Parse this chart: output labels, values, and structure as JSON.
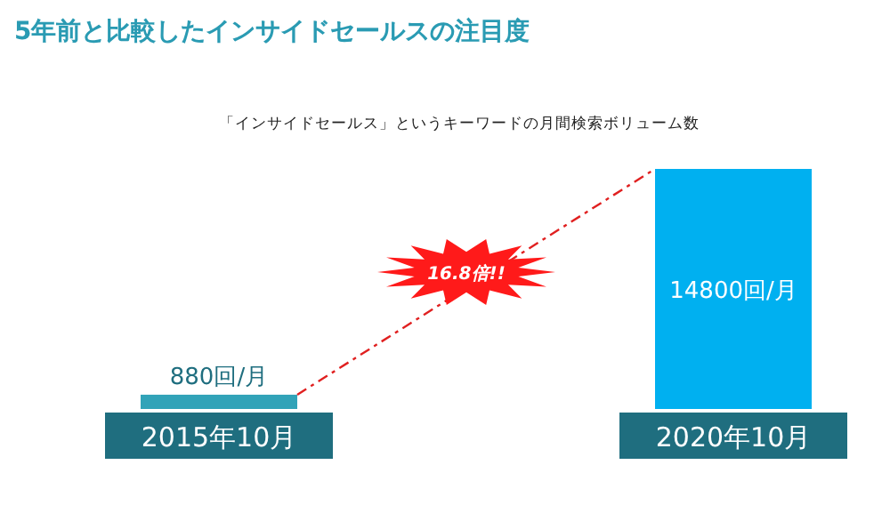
{
  "chart_data": {
    "type": "bar",
    "title": "5年前と比較したインサイドセールスの注目度",
    "subtitle": "「インサイドセールス」というキーワードの月間検索ボリューム数",
    "categories": [
      "2015年10月",
      "2020年10月"
    ],
    "values": [
      880,
      14800
    ],
    "value_labels": [
      "880回/月",
      "14800回/月"
    ],
    "colors": [
      "#31a3b8",
      "#00b0f0"
    ],
    "annotations": [
      "16.8倍!!"
    ]
  }
}
